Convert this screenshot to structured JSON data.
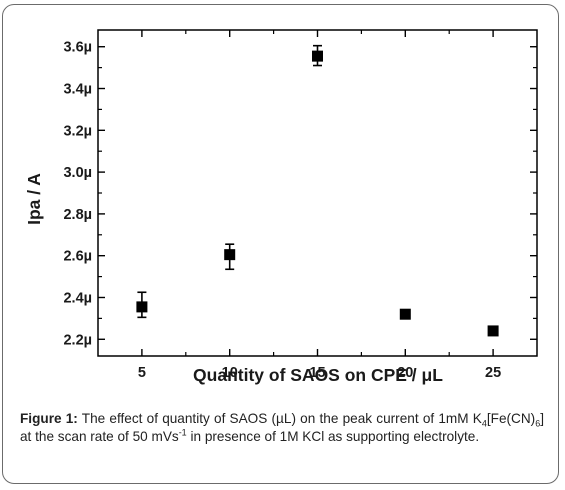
{
  "chart_data": {
    "type": "scatter",
    "xlabel": "Quantity of SAOS on CPE / μL",
    "ylabel": "Ipa / A",
    "xlim": [
      2.5,
      27.5
    ],
    "ylim": [
      2.12,
      3.68
    ],
    "xticks": [
      5,
      10,
      15,
      20,
      25
    ],
    "xtick_labels": [
      "5",
      "10",
      "15",
      "20",
      "25"
    ],
    "yticks": [
      2.2,
      2.4,
      2.6,
      2.8,
      3.0,
      3.2,
      3.4,
      3.6
    ],
    "ytick_labels": [
      "2.2µ",
      "2.4µ",
      "2.6µ",
      "2.8µ",
      "3.0µ",
      "3.2µ",
      "3.4µ",
      "3.6µ"
    ],
    "grid": false,
    "marker": "square",
    "points": [
      {
        "x": 5,
        "y": 2.355,
        "err_low": 2.305,
        "err_high": 2.425
      },
      {
        "x": 10,
        "y": 2.605,
        "err_low": 2.535,
        "err_high": 2.655
      },
      {
        "x": 15,
        "y": 3.555,
        "err_low": 3.51,
        "err_high": 3.605
      },
      {
        "x": 20,
        "y": 2.32,
        "err_low": 2.32,
        "err_high": 2.32
      },
      {
        "x": 25,
        "y": 2.24,
        "err_low": 2.24,
        "err_high": 2.24
      }
    ]
  },
  "caption": {
    "label": "Figure 1:",
    "text_1": " The effect of quantity of SAOS (µL) on the peak current of 1mM K",
    "sub_1": "4",
    "text_2": "[Fe(CN)",
    "sub_2": "6",
    "text_3": "] at the scan rate of 50 mVs",
    "sup_1": "-1",
    "text_4": " in presence of 1M KCl as supporting electrolyte."
  }
}
